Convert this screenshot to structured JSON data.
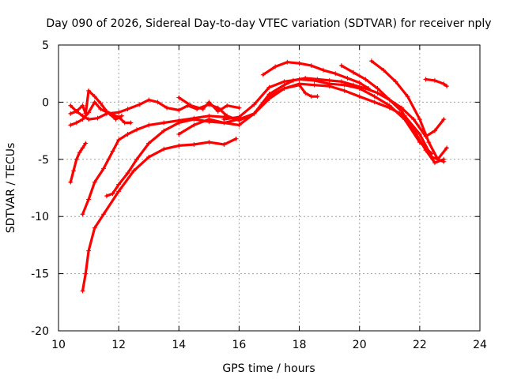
{
  "chart_data": {
    "type": "scatter",
    "title": "Day 090 of 2026, Sidereal Day-to-day VTEC variation (SDTVAR) for receiver nply",
    "xlabel": "GPS time / hours",
    "ylabel": "SDTVAR / TECUs",
    "xlim": [
      10,
      24
    ],
    "ylim": [
      -20,
      5
    ],
    "xticks": [
      10,
      12,
      14,
      16,
      18,
      20,
      22,
      24
    ],
    "yticks": [
      -20,
      -15,
      -10,
      -5,
      0,
      5
    ],
    "xtick_labels": [
      "10",
      "12",
      "14",
      "16",
      "18",
      "20",
      "22",
      "24"
    ],
    "ytick_labels": [
      "-20",
      "-15",
      "-10",
      "-5",
      "0",
      "5"
    ],
    "grid": true,
    "legend": "none",
    "marker": "+",
    "color": "#ff0000",
    "series": [
      {
        "name": "s1",
        "x": [
          10.8,
          10.9,
          11.0,
          11.2,
          11.5,
          12.0,
          12.5,
          13.0,
          13.5,
          14.0,
          14.5,
          15.0,
          15.5,
          15.9
        ],
        "y": [
          -16.5,
          -15.0,
          -13.0,
          -11.0,
          -9.8,
          -7.8,
          -6.0,
          -4.8,
          -4.1,
          -3.8,
          -3.7,
          -3.5,
          -3.7,
          -3.2
        ]
      },
      {
        "name": "s2",
        "x": [
          11.6,
          11.8,
          12.0,
          12.3,
          12.6,
          13.0,
          13.5,
          14.0,
          14.5,
          15.0,
          15.5,
          16.0,
          16.5,
          17.0,
          17.5,
          18.0,
          18.5,
          19.0,
          19.5,
          20.0,
          20.5,
          21.0,
          21.5,
          22.0,
          22.4,
          22.8
        ],
        "y": [
          -8.2,
          -8.0,
          -7.2,
          -6.2,
          -5.0,
          -3.6,
          -2.5,
          -1.8,
          -1.5,
          -1.7,
          -1.8,
          -1.5,
          -1.0,
          0.3,
          1.2,
          1.6,
          1.5,
          1.4,
          1.0,
          0.5,
          0.0,
          -0.5,
          -1.2,
          -2.8,
          -4.8,
          -5.2
        ]
      },
      {
        "name": "s3",
        "x": [
          10.4,
          10.5,
          10.6,
          10.7,
          10.8,
          10.9
        ],
        "y": [
          -7.0,
          -6.0,
          -5.0,
          -4.4,
          -4.0,
          -3.6
        ]
      },
      {
        "name": "s4",
        "x": [
          10.8,
          11.0,
          11.2,
          11.5,
          11.8,
          12.0,
          12.3,
          12.6,
          13.0,
          13.5,
          14.0,
          14.5,
          15.0,
          15.5,
          16.0,
          16.3
        ],
        "y": [
          -9.8,
          -8.5,
          -7.0,
          -5.8,
          -4.3,
          -3.3,
          -2.8,
          -2.4,
          -2.0,
          -1.8,
          -1.6,
          -1.4,
          -1.2,
          -1.3,
          -1.5,
          -1.3
        ]
      },
      {
        "name": "s5",
        "x": [
          10.4,
          10.6,
          10.8,
          11.0,
          11.3,
          11.6,
          12.0,
          12.3,
          12.7,
          13.0,
          13.3,
          13.6,
          14.0,
          14.3,
          14.6,
          15.0,
          15.3,
          15.6,
          16.0,
          16.5,
          17.0,
          17.5,
          17.8,
          18.2,
          18.6,
          19.0,
          19.4,
          19.8,
          20.2,
          20.6,
          21.0,
          21.4,
          21.8,
          22.2,
          22.5,
          22.8
        ],
        "y": [
          -1.0,
          -0.8,
          -1.2,
          -1.5,
          -1.4,
          -1.0,
          -0.9,
          -0.6,
          -0.2,
          0.2,
          0.0,
          -0.5,
          -0.7,
          -0.3,
          -0.6,
          -0.2,
          -0.5,
          -1.2,
          -1.6,
          -1.0,
          0.7,
          1.5,
          1.9,
          2.1,
          2.0,
          1.9,
          1.8,
          1.5,
          1.2,
          0.8,
          0.2,
          -0.5,
          -1.5,
          -3.0,
          -2.5,
          -1.5
        ]
      },
      {
        "name": "s6",
        "x": [
          10.4,
          10.6,
          10.8,
          11.0,
          11.2,
          11.4,
          11.7,
          12.0,
          12.2,
          12.4
        ],
        "y": [
          -2.0,
          -1.8,
          -1.5,
          -0.9,
          0.0,
          -0.6,
          -1.0,
          -1.3,
          -1.8,
          -1.8
        ]
      },
      {
        "name": "s7",
        "x": [
          10.4,
          10.6,
          10.8,
          10.9,
          11.0,
          11.2,
          11.4,
          11.6,
          11.9,
          12.1
        ],
        "y": [
          -0.3,
          -0.8,
          -0.3,
          -1.0,
          1.0,
          0.5,
          -0.1,
          -0.8,
          -1.5,
          -1.2
        ]
      },
      {
        "name": "s8",
        "x": [
          14.0,
          14.4,
          14.8,
          15.0,
          15.3,
          15.6,
          16.0
        ],
        "y": [
          0.4,
          -0.3,
          -0.6,
          0.0,
          -0.8,
          -0.3,
          -0.5
        ]
      },
      {
        "name": "s9",
        "x": [
          14.0,
          14.5,
          15.0,
          15.5,
          16.0,
          16.5,
          17.0,
          17.5,
          18.0,
          18.2,
          18.4,
          18.6
        ],
        "y": [
          -2.8,
          -2.0,
          -1.5,
          -1.8,
          -2.0,
          -1.0,
          0.5,
          1.2,
          1.5,
          0.8,
          0.5,
          0.5
        ]
      },
      {
        "name": "s10",
        "x": [
          15.5,
          16.0,
          16.5,
          17.0,
          17.5,
          18.0,
          18.5,
          19.0,
          19.5,
          20.0,
          20.5,
          21.0,
          21.5,
          22.0,
          22.4
        ],
        "y": [
          -1.5,
          -1.3,
          -0.2,
          1.3,
          1.8,
          2.0,
          1.9,
          1.6,
          1.5,
          1.2,
          0.5,
          -0.3,
          -1.5,
          -3.5,
          -4.5
        ]
      },
      {
        "name": "s11",
        "x": [
          16.8,
          17.2,
          17.6,
          18.0,
          18.4,
          18.8,
          19.2,
          19.6,
          20.0,
          20.3
        ],
        "y": [
          2.4,
          3.1,
          3.5,
          3.4,
          3.2,
          2.8,
          2.5,
          2.1,
          1.7,
          1.2
        ]
      },
      {
        "name": "s12",
        "x": [
          19.4,
          19.8,
          20.2,
          20.6,
          21.0,
          21.4,
          21.8,
          22.2,
          22.5,
          22.8
        ],
        "y": [
          3.2,
          2.6,
          2.0,
          1.2,
          0.2,
          -0.8,
          -2.4,
          -4.2,
          -5.3,
          -5.0
        ]
      },
      {
        "name": "s13",
        "x": [
          20.4,
          20.8,
          21.2,
          21.6,
          22.0,
          22.3,
          22.6,
          22.9
        ],
        "y": [
          3.6,
          2.8,
          1.8,
          0.5,
          -1.5,
          -3.5,
          -5.0,
          -4.0
        ]
      },
      {
        "name": "s14",
        "x": [
          22.2,
          22.5,
          22.8,
          22.9
        ],
        "y": [
          2.0,
          1.9,
          1.6,
          1.4
        ]
      }
    ]
  }
}
